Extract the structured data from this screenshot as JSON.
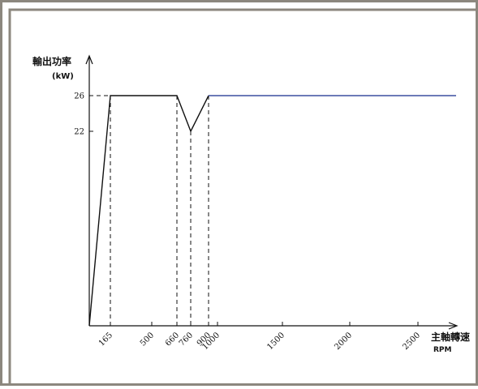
{
  "chart_data": {
    "type": "line",
    "ylabel": "輸出功率",
    "yunit": "(kW)",
    "xlabel": "主軸轉速",
    "xunit": "RPM",
    "yticks": [
      26,
      22
    ],
    "xticks": [
      "165",
      "500",
      "660",
      "760",
      "900",
      "1000",
      "1500",
      "2000",
      "2500"
    ],
    "dashed_x": [
      165,
      660,
      760,
      900
    ],
    "series": [
      {
        "points": [
          {
            "x": 0,
            "y": 0
          },
          {
            "x": 165,
            "y": 26
          },
          {
            "x": 660,
            "y": 26
          },
          {
            "x": 760,
            "y": 22
          },
          {
            "x": 900,
            "y": 26
          },
          {
            "x": 2800,
            "y": 26
          }
        ]
      }
    ],
    "colors": {
      "line": "#111111",
      "tail_line": "#3b4fa0",
      "frame": "#8c877e"
    }
  }
}
